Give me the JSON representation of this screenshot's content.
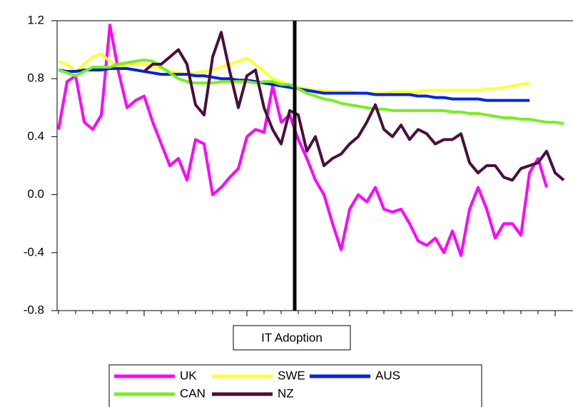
{
  "chart_data": {
    "type": "line",
    "annotation": "IT Adoption",
    "categories": [
      null,
      null,
      null,
      null,
      null,
      null,
      null,
      null,
      null,
      null,
      null,
      null,
      null,
      null,
      null,
      null,
      null,
      null,
      null,
      null,
      null,
      null,
      null,
      null,
      null,
      null,
      null,
      null,
      null,
      null,
      null,
      null,
      null,
      null,
      null,
      null,
      null,
      null,
      null,
      null,
      null,
      null,
      null,
      null,
      null,
      null,
      null,
      null,
      null,
      null,
      null,
      null,
      null,
      null,
      null,
      null,
      null,
      null,
      null,
      null
    ],
    "series": [
      {
        "name": "UK",
        "color": "#ff00ff",
        "values": [
          0.45,
          0.78,
          0.82,
          0.5,
          0.45,
          0.55,
          1.17,
          0.85,
          0.6,
          0.65,
          0.68,
          0.5,
          0.35,
          0.2,
          0.25,
          0.1,
          0.38,
          0.35,
          0.0,
          0.05,
          0.12,
          0.18,
          0.4,
          0.45,
          0.43,
          0.75,
          0.5,
          0.55,
          0.38,
          0.25,
          0.1,
          0.0,
          -0.2,
          -0.38,
          -0.1,
          0.0,
          -0.05,
          0.05,
          -0.1,
          -0.12,
          -0.1,
          -0.2,
          -0.32,
          -0.35,
          -0.3,
          -0.4,
          -0.25,
          -0.42,
          -0.1,
          0.05,
          -0.1,
          -0.3,
          -0.2,
          -0.2,
          -0.28,
          0.15,
          0.25,
          0.05,
          null,
          null
        ]
      },
      {
        "name": "SWE",
        "color": "#ffff33",
        "values": [
          0.92,
          0.9,
          0.85,
          0.9,
          0.95,
          0.97,
          0.92,
          0.88,
          0.9,
          0.9,
          0.9,
          0.88,
          0.87,
          0.85,
          0.84,
          0.83,
          0.84,
          0.85,
          0.86,
          0.88,
          0.9,
          0.92,
          0.94,
          0.9,
          0.85,
          0.8,
          0.78,
          0.75,
          0.74,
          0.73,
          0.72,
          0.72,
          0.71,
          0.71,
          0.71,
          0.7,
          0.7,
          0.7,
          0.7,
          0.71,
          0.71,
          0.71,
          0.71,
          0.72,
          0.72,
          0.72,
          0.72,
          0.72,
          0.72,
          0.72,
          0.73,
          0.73,
          0.74,
          0.75,
          0.76,
          0.77,
          null,
          null,
          null,
          null
        ]
      },
      {
        "name": "AUS",
        "color": "#0022dd",
        "values": [
          0.86,
          0.85,
          0.85,
          0.86,
          0.86,
          0.86,
          0.87,
          0.87,
          0.87,
          0.86,
          0.85,
          0.84,
          0.83,
          0.83,
          0.83,
          0.83,
          0.82,
          0.82,
          0.81,
          0.8,
          0.8,
          0.79,
          0.79,
          0.78,
          0.77,
          0.76,
          0.75,
          0.74,
          0.73,
          0.72,
          0.71,
          0.7,
          0.7,
          0.7,
          0.7,
          0.7,
          0.7,
          0.69,
          0.69,
          0.69,
          0.69,
          0.69,
          0.68,
          0.68,
          0.67,
          0.67,
          0.66,
          0.66,
          0.66,
          0.66,
          0.65,
          0.65,
          0.65,
          0.65,
          0.65,
          0.65,
          null,
          null,
          null,
          null
        ]
      },
      {
        "name": "CAN",
        "color": "#77ee22",
        "values": [
          0.86,
          0.84,
          0.82,
          0.85,
          0.88,
          0.88,
          0.88,
          0.9,
          0.91,
          0.92,
          0.93,
          0.92,
          0.88,
          0.84,
          0.8,
          0.78,
          0.77,
          0.77,
          0.77,
          0.78,
          0.78,
          0.78,
          0.78,
          0.77,
          0.78,
          0.78,
          0.76,
          0.76,
          0.73,
          0.7,
          0.68,
          0.66,
          0.65,
          0.63,
          0.62,
          0.61,
          0.6,
          0.59,
          0.59,
          0.58,
          0.58,
          0.58,
          0.58,
          0.58,
          0.58,
          0.58,
          0.57,
          0.57,
          0.56,
          0.56,
          0.55,
          0.54,
          0.53,
          0.53,
          0.52,
          0.52,
          0.51,
          0.5,
          0.5,
          0.49
        ]
      },
      {
        "name": "NZ",
        "color": "#4a0f3c",
        "values": [
          null,
          null,
          null,
          null,
          null,
          null,
          null,
          null,
          null,
          null,
          0.85,
          0.9,
          0.9,
          0.95,
          1.0,
          0.9,
          0.62,
          0.55,
          0.95,
          1.12,
          0.85,
          0.6,
          0.82,
          0.86,
          0.6,
          0.45,
          0.35,
          0.58,
          0.55,
          0.3,
          0.4,
          0.2,
          0.25,
          0.28,
          0.35,
          0.4,
          0.5,
          0.62,
          0.45,
          0.4,
          0.48,
          0.38,
          0.45,
          0.42,
          0.35,
          0.38,
          0.38,
          0.42,
          0.22,
          0.15,
          0.2,
          0.2,
          0.12,
          0.1,
          0.18,
          0.2,
          0.22,
          0.3,
          0.15,
          0.1
        ]
      }
    ],
    "ylim": [
      -0.8,
      1.2
    ],
    "yticks": [
      -0.8,
      -0.4,
      {
        "value": 0,
        "label": "0.0"
      },
      0.4,
      0.8,
      1.2
    ],
    "grid": false
  }
}
